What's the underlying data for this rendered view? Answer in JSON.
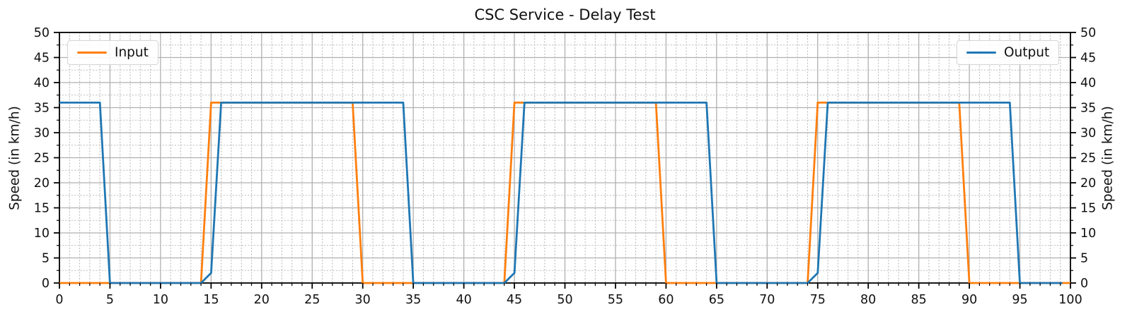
{
  "chart_data": {
    "type": "line",
    "title": "CSC Service - Delay Test",
    "ylabel_left": "Speed (in km/h)",
    "ylabel_right": "Speed (in km/h)",
    "xlim": [
      0,
      100
    ],
    "ylim": [
      0,
      50
    ],
    "xticks": [
      0,
      5,
      10,
      15,
      20,
      25,
      30,
      35,
      40,
      45,
      50,
      55,
      60,
      65,
      70,
      75,
      80,
      85,
      90,
      95,
      100
    ],
    "yticks": [
      0,
      5,
      10,
      15,
      20,
      25,
      30,
      35,
      40,
      45,
      50
    ],
    "x_minor_step": 1,
    "y_minor_step": 2.5,
    "grid": {
      "major_color": "#b0b0b0",
      "minor_color": "#bdbdbd"
    },
    "axis_color": "#000000",
    "tick_label_color": "#111111",
    "legend_position": [
      "upper-left",
      "upper-right"
    ],
    "series": [
      {
        "name": "Input",
        "color": "#ff7f0e",
        "points": [
          [
            0,
            0
          ],
          [
            14,
            0
          ],
          [
            15,
            36
          ],
          [
            29,
            36
          ],
          [
            30,
            0
          ],
          [
            44,
            0
          ],
          [
            45,
            36
          ],
          [
            59,
            36
          ],
          [
            60,
            0
          ],
          [
            74,
            0
          ],
          [
            75,
            36
          ],
          [
            89,
            36
          ],
          [
            90,
            0
          ],
          [
            100,
            0
          ]
        ]
      },
      {
        "name": "Output",
        "color": "#1f77b4",
        "points": [
          [
            0,
            36
          ],
          [
            4,
            36
          ],
          [
            5,
            0
          ],
          [
            14,
            0
          ],
          [
            15,
            2
          ],
          [
            16,
            36
          ],
          [
            34,
            36
          ],
          [
            35,
            0
          ],
          [
            44,
            0
          ],
          [
            45,
            2
          ],
          [
            46,
            36
          ],
          [
            64,
            36
          ],
          [
            65,
            0
          ],
          [
            74,
            0
          ],
          [
            75,
            2
          ],
          [
            76,
            36
          ],
          [
            94,
            36
          ],
          [
            95,
            0
          ],
          [
            99.2,
            0
          ]
        ]
      }
    ],
    "legend": {
      "input_label": "Input",
      "output_label": "Output"
    }
  }
}
